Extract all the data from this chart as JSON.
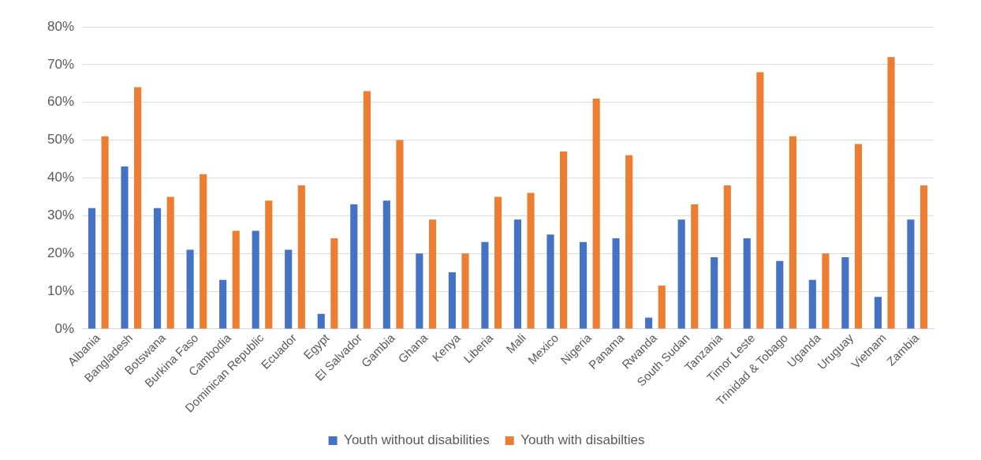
{
  "chart_data": {
    "type": "bar",
    "categories": [
      "Albania",
      "Bangladesh",
      "Botswana",
      "Burkina Faso",
      "Cambodia",
      "Dominican Republic",
      "Ecuador",
      "Egypt",
      "El Salvador",
      "Gambia",
      "Ghana",
      "Kenya",
      "Liberia",
      "Mali",
      "Mexico",
      "Nigeria",
      "Panama",
      "Rwanda",
      "South Sudan",
      "Tanzania",
      "Timor Leste",
      "Trinidad & Tobago",
      "Uganda",
      "Uruguay",
      "Vietnam",
      "Zambia"
    ],
    "series": [
      {
        "name": "Youth without disabilities",
        "color": "#4472c4",
        "values": [
          32,
          43,
          32,
          21,
          13,
          26,
          21,
          4,
          33,
          34,
          20,
          15,
          23,
          29,
          25,
          23,
          24,
          3,
          29,
          19,
          24,
          18,
          13,
          19,
          8.5,
          29
        ]
      },
      {
        "name": "Youth with disabilties",
        "color": "#ed7d31",
        "values": [
          51,
          64,
          35,
          41,
          26,
          34,
          38,
          24,
          63,
          50,
          29,
          20,
          35,
          36,
          47,
          61,
          46,
          11.5,
          33,
          38,
          68,
          51,
          20,
          49,
          72,
          38
        ]
      }
    ],
    "ylim": [
      0,
      80
    ],
    "yticks": [
      {
        "value": 0,
        "label": "0%"
      },
      {
        "value": 10,
        "label": "10%"
      },
      {
        "value": 20,
        "label": "20%"
      },
      {
        "value": 30,
        "label": "30%"
      },
      {
        "value": 40,
        "label": "40%"
      },
      {
        "value": 50,
        "label": "50%"
      },
      {
        "value": 60,
        "label": "60%"
      },
      {
        "value": 70,
        "label": "70%"
      },
      {
        "value": 80,
        "label": "80%"
      }
    ],
    "grid": "y",
    "legend": "bottom"
  }
}
